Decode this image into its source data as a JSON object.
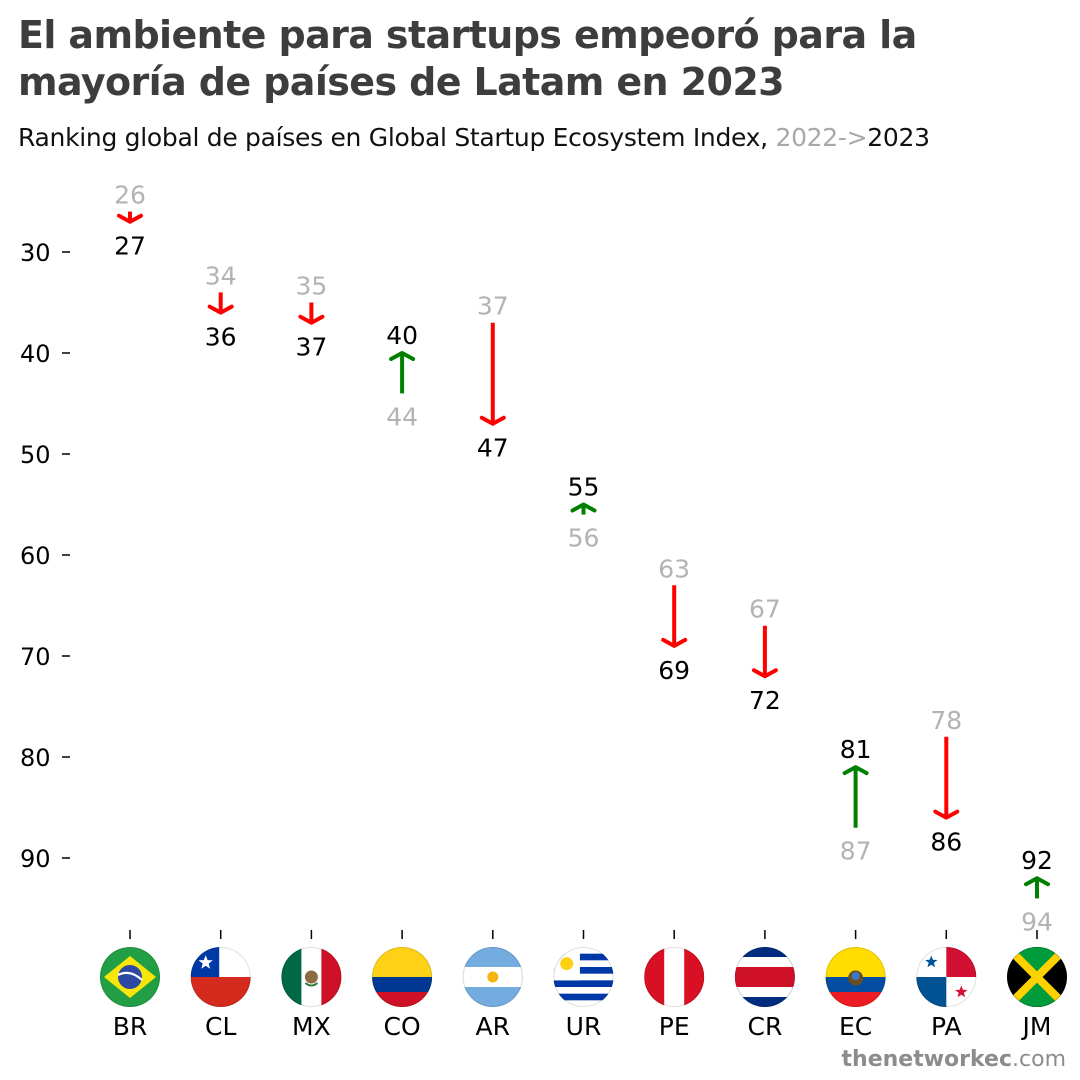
{
  "title": "El ambiente para startups empeoró para la mayoría de países de Latam en 2023",
  "subtitle": {
    "text": "Ranking global de países en Global Startup Ecosystem Index,",
    "year_old": "2022->",
    "year_new": "2023"
  },
  "credit": {
    "bold": "thenetworkec",
    "rest": ".com"
  },
  "colors": {
    "worse": "#ff0000",
    "better": "#008000",
    "old_label": "#b3b3b3",
    "new_label": "#000000"
  },
  "chart_data": {
    "type": "arrow-dumbbell",
    "categories": [
      "BR",
      "CL",
      "MX",
      "CO",
      "AR",
      "UR",
      "PE",
      "CR",
      "EC",
      "PA",
      "JM"
    ],
    "series": [
      {
        "name": "2022",
        "values": [
          26,
          34,
          35,
          44,
          37,
          56,
          63,
          67,
          87,
          78,
          94
        ]
      },
      {
        "name": "2023",
        "values": [
          27,
          36,
          37,
          40,
          47,
          55,
          69,
          72,
          81,
          86,
          92
        ]
      }
    ],
    "y_axis": {
      "inverted": true,
      "ticks": [
        30,
        40,
        50,
        60,
        70,
        80,
        90
      ]
    },
    "flags": [
      "brazil-flag",
      "chile-flag",
      "mexico-flag",
      "colombia-flag",
      "argentina-flag",
      "uruguay-flag",
      "peru-flag",
      "costa-rica-flag",
      "ecuador-flag",
      "panama-flag",
      "jamaica-flag"
    ],
    "grid": false,
    "legend": "none"
  }
}
